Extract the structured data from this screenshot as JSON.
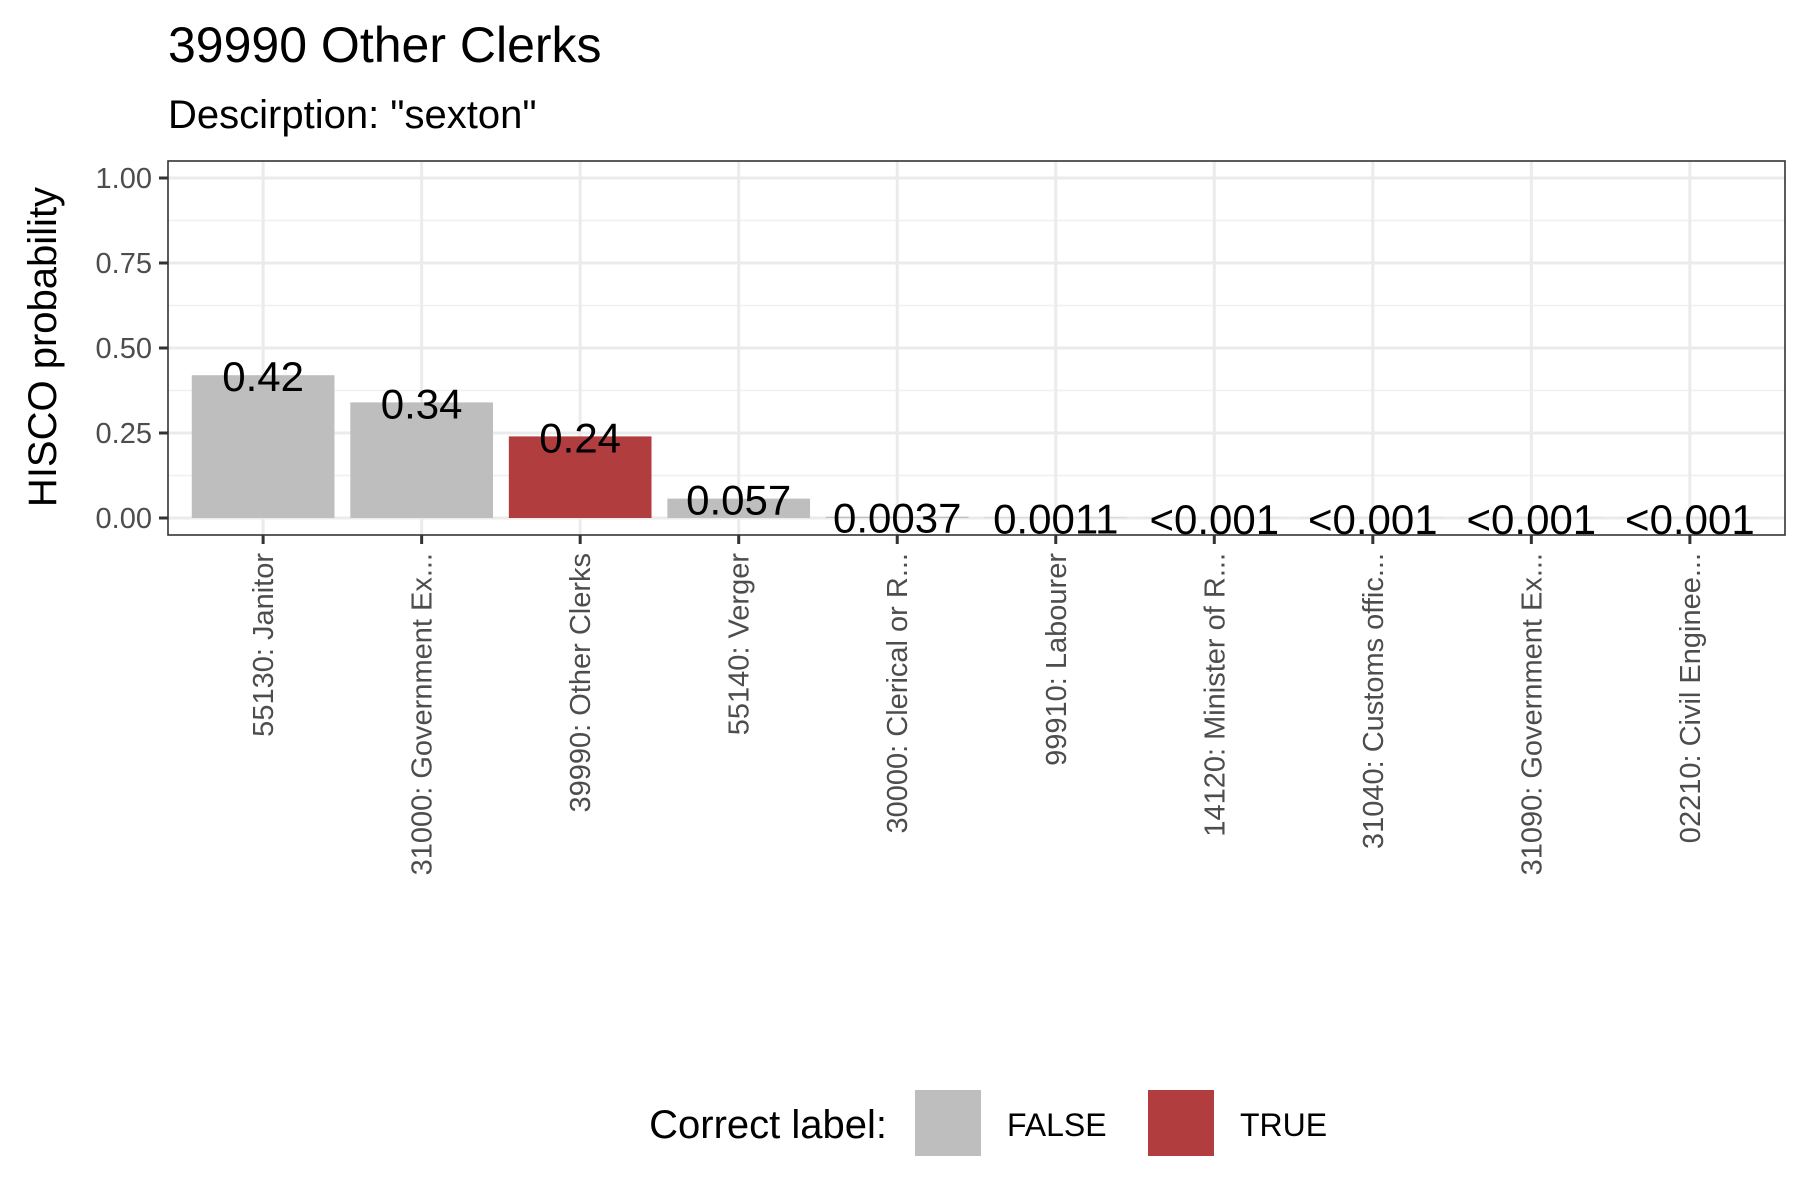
{
  "chart_data": {
    "type": "bar",
    "title": "39990 Other Clerks",
    "subtitle": "Descirption: \"sexton\"",
    "ylabel": "HISCO probability",
    "xlabel": "",
    "ylim": [
      0,
      1.0
    ],
    "yticks": [
      "0.00",
      "0.25",
      "0.50",
      "0.75",
      "1.00"
    ],
    "ytick_values": [
      0,
      0.25,
      0.5,
      0.75,
      1.0
    ],
    "grid": true,
    "legend": {
      "title": "Correct label:",
      "position": "bottom",
      "entries": [
        {
          "label": "FALSE",
          "color": "#bebebe"
        },
        {
          "label": "TRUE",
          "color": "#b13d3f"
        }
      ]
    },
    "categories": [
      "55130: Janitor",
      "31000: Government Ex...",
      "39990: Other Clerks",
      "55140: Verger",
      "30000: Clerical or R...",
      "99910: Labourer",
      "14120: Minister of R...",
      "31040: Customs offic...",
      "31090: Government Ex...",
      "02210: Civil Enginee..."
    ],
    "values": [
      0.42,
      0.34,
      0.24,
      0.057,
      0.0037,
      0.0011,
      0.0005,
      0.0005,
      0.0005,
      0.0005
    ],
    "data_labels": [
      "0.42",
      "0.34",
      "0.24",
      "0.057",
      "0.0037",
      "0.0011",
      "<0.001",
      "<0.001",
      "<0.001",
      "<0.001"
    ],
    "correct": [
      false,
      false,
      true,
      false,
      false,
      false,
      false,
      false,
      false,
      false
    ]
  }
}
